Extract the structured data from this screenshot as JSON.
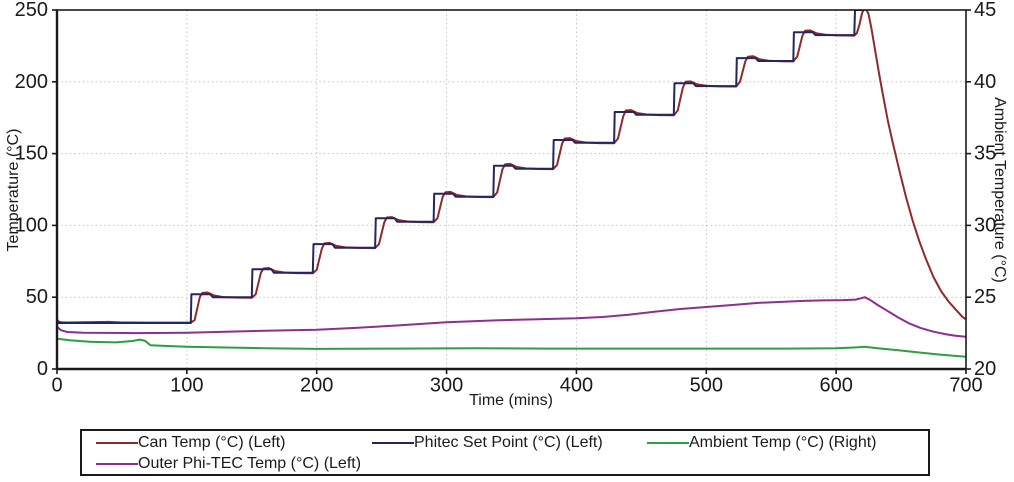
{
  "chart_data": {
    "type": "line",
    "title": "",
    "xlabel": "Time (mins)",
    "ylabel_left": "Temperature (°C)",
    "ylabel_right": "Ambient Temperature (°C)",
    "xlim": [
      0,
      700
    ],
    "xticks": [
      0,
      100,
      200,
      300,
      400,
      500,
      600,
      700
    ],
    "ylim_left": [
      0,
      250
    ],
    "yticks_left": [
      0,
      50,
      100,
      150,
      200,
      250
    ],
    "ylim_right": [
      20,
      45
    ],
    "yticks_right": [
      20,
      25,
      30,
      35,
      40,
      45
    ],
    "grid": "dotted",
    "grid_color": "#c4c4c4",
    "axis_color": "#1a1a1a",
    "legend_position": "bottom",
    "series": [
      {
        "name": "Can Temp (°C) (Left)",
        "color": "#8f2a2a",
        "axis": "left",
        "points": [
          [
            0,
            34.5
          ],
          [
            1,
            33.2
          ],
          [
            3,
            32.6
          ],
          [
            8,
            32.4
          ],
          [
            20,
            32.5
          ],
          [
            40,
            32.8
          ],
          [
            50,
            32.4
          ],
          [
            70,
            32.3
          ],
          [
            103,
            32.3
          ],
          [
            106,
            34
          ],
          [
            110,
            50
          ],
          [
            112,
            53
          ],
          [
            116,
            53.3
          ],
          [
            121,
            51.2
          ],
          [
            128,
            50.1
          ],
          [
            140,
            49.7
          ],
          [
            150,
            49.6
          ],
          [
            153,
            52
          ],
          [
            157,
            67
          ],
          [
            159,
            70
          ],
          [
            163,
            70.3
          ],
          [
            168,
            68.2
          ],
          [
            175,
            67.2
          ],
          [
            185,
            66.8
          ],
          [
            197,
            66.7
          ],
          [
            200,
            69
          ],
          [
            204,
            84
          ],
          [
            206,
            87.5
          ],
          [
            210,
            87.8
          ],
          [
            215,
            85.7
          ],
          [
            222,
            84.7
          ],
          [
            232,
            84.3
          ],
          [
            245,
            84.2
          ],
          [
            248,
            87
          ],
          [
            252,
            102
          ],
          [
            254,
            105.5
          ],
          [
            258,
            105.8
          ],
          [
            263,
            103.7
          ],
          [
            270,
            102.7
          ],
          [
            280,
            102.3
          ],
          [
            290,
            102.2
          ],
          [
            293,
            105
          ],
          [
            297,
            120
          ],
          [
            299,
            123
          ],
          [
            303,
            123.3
          ],
          [
            308,
            121.2
          ],
          [
            315,
            120.2
          ],
          [
            325,
            119.8
          ],
          [
            336,
            119.7
          ],
          [
            339,
            123
          ],
          [
            343,
            139
          ],
          [
            345,
            142.5
          ],
          [
            349,
            142.8
          ],
          [
            354,
            140.7
          ],
          [
            361,
            139.7
          ],
          [
            371,
            139.3
          ],
          [
            382,
            139.2
          ],
          [
            385,
            142
          ],
          [
            389,
            157
          ],
          [
            391,
            160.5
          ],
          [
            395,
            160.8
          ],
          [
            400,
            158.7
          ],
          [
            407,
            157.7
          ],
          [
            417,
            157.3
          ],
          [
            429,
            157.2
          ],
          [
            432,
            160.5
          ],
          [
            436,
            176
          ],
          [
            438,
            180
          ],
          [
            442,
            180.3
          ],
          [
            447,
            178.2
          ],
          [
            454,
            177.2
          ],
          [
            464,
            176.8
          ],
          [
            475,
            176.7
          ],
          [
            478,
            180
          ],
          [
            482,
            196
          ],
          [
            484,
            200
          ],
          [
            488,
            200.3
          ],
          [
            493,
            198.2
          ],
          [
            500,
            197.2
          ],
          [
            510,
            196.8
          ],
          [
            523,
            196.7
          ],
          [
            526,
            200
          ],
          [
            530,
            214
          ],
          [
            532,
            217.5
          ],
          [
            536,
            217.8
          ],
          [
            541,
            215.7
          ],
          [
            548,
            214.7
          ],
          [
            558,
            214.3
          ],
          [
            567,
            214.2
          ],
          [
            570,
            217.5
          ],
          [
            574,
            232
          ],
          [
            576,
            235.5
          ],
          [
            580,
            235.8
          ],
          [
            585,
            233.7
          ],
          [
            592,
            232.7
          ],
          [
            602,
            232.3
          ],
          [
            614,
            232.2
          ],
          [
            616,
            234
          ],
          [
            618,
            240
          ],
          [
            620,
            248
          ],
          [
            621.5,
            251
          ],
          [
            623,
            251
          ],
          [
            625,
            247
          ],
          [
            627,
            238
          ],
          [
            630,
            222
          ],
          [
            633,
            206
          ],
          [
            636,
            191
          ],
          [
            640,
            172
          ],
          [
            644,
            156
          ],
          [
            649,
            137
          ],
          [
            654,
            119
          ],
          [
            659,
            103
          ],
          [
            664,
            89
          ],
          [
            669,
            77
          ],
          [
            675,
            64
          ],
          [
            681,
            54
          ],
          [
            687,
            46.5
          ],
          [
            693,
            40.5
          ],
          [
            697,
            36.5
          ],
          [
            700,
            34.5
          ]
        ]
      },
      {
        "name": "Phitec Set Point (°C) (Left)",
        "color": "#26265e",
        "axis": "left",
        "points": [
          [
            0,
            32
          ],
          [
            103,
            32
          ],
          [
            103.5,
            52
          ],
          [
            118,
            52
          ],
          [
            120,
            50
          ],
          [
            150,
            50
          ],
          [
            150.5,
            69.5
          ],
          [
            165,
            69.5
          ],
          [
            167,
            67
          ],
          [
            197,
            67
          ],
          [
            197.5,
            87
          ],
          [
            212,
            87
          ],
          [
            214,
            84.5
          ],
          [
            245,
            84.5
          ],
          [
            245.5,
            105
          ],
          [
            260,
            105
          ],
          [
            262,
            102.5
          ],
          [
            290,
            102.5
          ],
          [
            290.5,
            122
          ],
          [
            305,
            122
          ],
          [
            307,
            120
          ],
          [
            336,
            120
          ],
          [
            336.5,
            141.5
          ],
          [
            351,
            141.5
          ],
          [
            353,
            139.5
          ],
          [
            382,
            139.5
          ],
          [
            382.5,
            159.5
          ],
          [
            397,
            159.5
          ],
          [
            399,
            157.5
          ],
          [
            429,
            157.5
          ],
          [
            429.5,
            179
          ],
          [
            444,
            179
          ],
          [
            446,
            177
          ],
          [
            475,
            177
          ],
          [
            475.5,
            199
          ],
          [
            490,
            199
          ],
          [
            492,
            197
          ],
          [
            523,
            197
          ],
          [
            523.5,
            216.5
          ],
          [
            538,
            216.5
          ],
          [
            540,
            214.5
          ],
          [
            567,
            214.5
          ],
          [
            567.5,
            234.5
          ],
          [
            582,
            234.5
          ],
          [
            584,
            232.5
          ],
          [
            614,
            232.5
          ],
          [
            614.5,
            250
          ],
          [
            622,
            250
          ]
        ]
      },
      {
        "name": "Outer Phi-TEC Temp (°C) (Left)",
        "color": "#8e2e8e",
        "axis": "left",
        "points": [
          [
            0,
            29.5
          ],
          [
            3,
            27
          ],
          [
            8,
            25.8
          ],
          [
            20,
            25.2
          ],
          [
            60,
            25
          ],
          [
            100,
            25.3
          ],
          [
            130,
            26
          ],
          [
            160,
            26.6
          ],
          [
            200,
            27.4
          ],
          [
            230,
            28.6
          ],
          [
            260,
            30.2
          ],
          [
            300,
            32.5
          ],
          [
            340,
            33.9
          ],
          [
            370,
            34.6
          ],
          [
            400,
            35.3
          ],
          [
            420,
            36.2
          ],
          [
            440,
            37.8
          ],
          [
            460,
            39.8
          ],
          [
            480,
            41.8
          ],
          [
            500,
            43.2
          ],
          [
            520,
            44.6
          ],
          [
            540,
            46
          ],
          [
            560,
            46.9
          ],
          [
            575,
            47.4
          ],
          [
            590,
            47.8
          ],
          [
            605,
            48
          ],
          [
            615,
            48.3
          ],
          [
            619,
            49.2
          ],
          [
            622,
            50
          ],
          [
            626,
            48.2
          ],
          [
            632,
            44.6
          ],
          [
            640,
            40.2
          ],
          [
            648,
            35.8
          ],
          [
            656,
            31.8
          ],
          [
            665,
            28.6
          ],
          [
            675,
            26
          ],
          [
            685,
            24.1
          ],
          [
            692,
            23.1
          ],
          [
            700,
            22.4
          ]
        ]
      },
      {
        "name": "Ambient Temp (°C) (Right)",
        "color": "#2e9e40",
        "axis": "right",
        "points": [
          [
            0,
            22.1
          ],
          [
            10,
            22.0
          ],
          [
            25,
            21.9
          ],
          [
            45,
            21.85
          ],
          [
            58,
            21.95
          ],
          [
            64,
            22.05
          ],
          [
            68,
            21.95
          ],
          [
            72,
            21.65
          ],
          [
            85,
            21.6
          ],
          [
            100,
            21.55
          ],
          [
            130,
            21.5
          ],
          [
            160,
            21.45
          ],
          [
            200,
            21.4
          ],
          [
            260,
            21.42
          ],
          [
            320,
            21.45
          ],
          [
            380,
            21.42
          ],
          [
            440,
            21.42
          ],
          [
            500,
            21.42
          ],
          [
            560,
            21.42
          ],
          [
            600,
            21.45
          ],
          [
            614,
            21.5
          ],
          [
            622,
            21.55
          ],
          [
            632,
            21.45
          ],
          [
            648,
            21.3
          ],
          [
            664,
            21.15
          ],
          [
            680,
            21.0
          ],
          [
            700,
            20.85
          ]
        ]
      }
    ],
    "legend_entries": [
      {
        "label": "Can Temp (°C) (Left)",
        "color": "#8f2a2a"
      },
      {
        "label": "Phitec Set Point (°C) (Left)",
        "color": "#26265e"
      },
      {
        "label": "Ambient Temp (°C) (Right)",
        "color": "#2e9e40"
      },
      {
        "label": "Outer Phi-TEC Temp (°C) (Left)",
        "color": "#8e2e8e"
      }
    ]
  }
}
